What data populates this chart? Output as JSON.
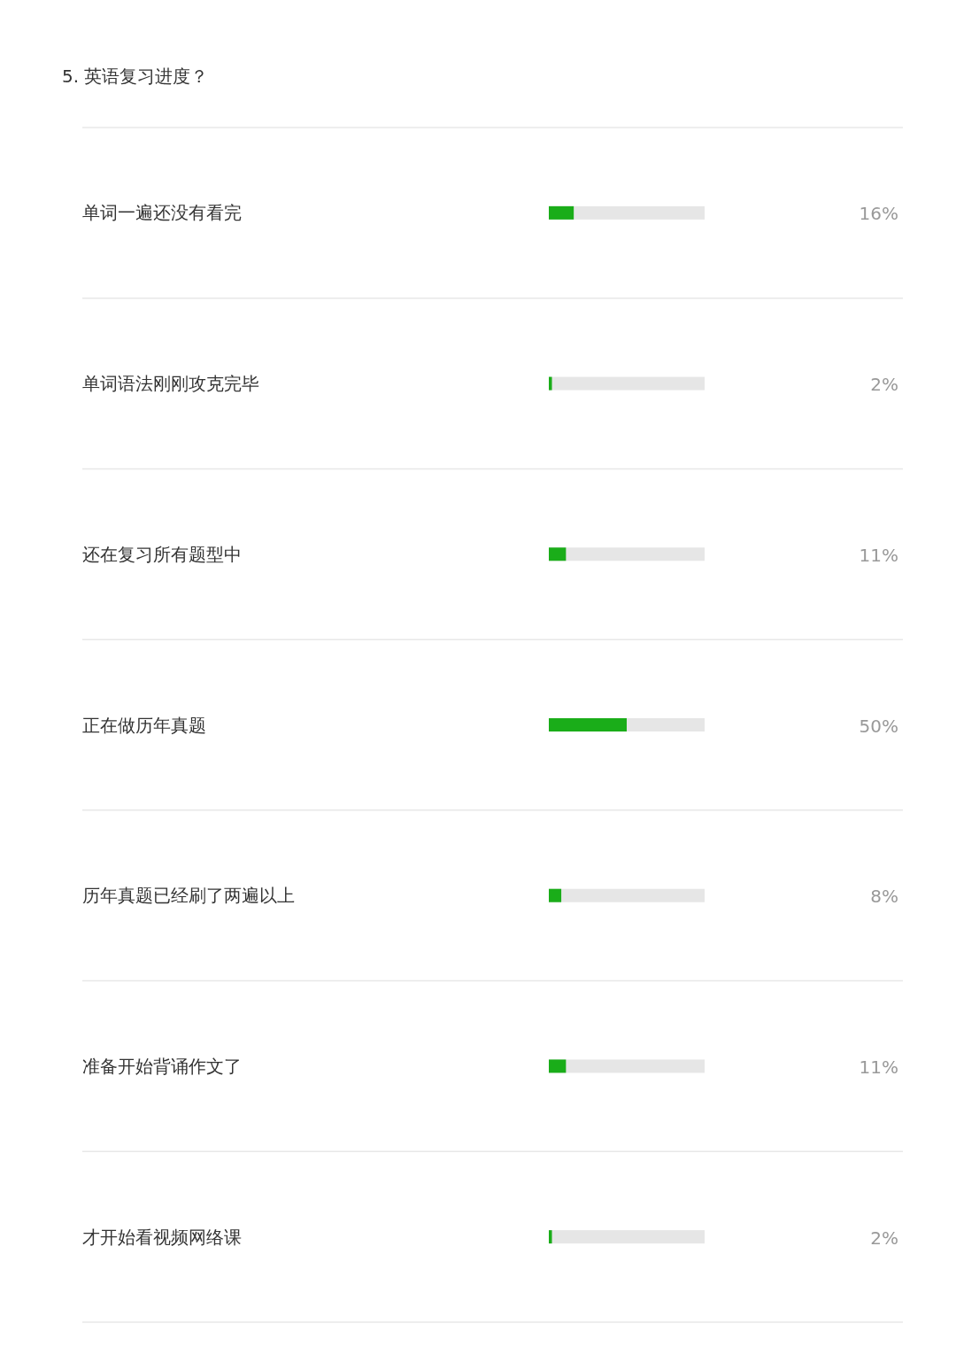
{
  "chart_data": {
    "type": "bar",
    "title": "5. 英语复习进度？",
    "orientation": "horizontal",
    "categories": [
      "单词一遍还没有看完",
      "单词语法刚刚攻克完毕",
      "还在复习所有题型中",
      "正在做历年真题",
      "历年真题已经刷了两遍以上",
      "准备开始背诵作文了",
      "才开始看视频网络课"
    ],
    "values": [
      16,
      2,
      11,
      50,
      8,
      11,
      2
    ],
    "value_labels": [
      "16%",
      "2%",
      "11%",
      "50%",
      "8%",
      "11%",
      "2%"
    ],
    "color": "#1aad19",
    "xlim": [
      0,
      100
    ]
  }
}
